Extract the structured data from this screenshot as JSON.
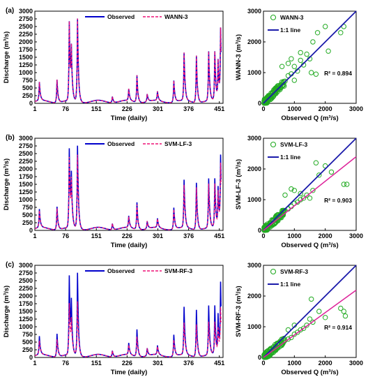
{
  "colors": {
    "observed": "#0000cc",
    "predicted": "#ee1177",
    "scatter": "#22aa22",
    "fit": "#dd2299",
    "identity": "#1a1aaa"
  },
  "chart_data": [
    {
      "type": "line",
      "panel": "(a)",
      "xlabel": "Time (daily)",
      "ylabel": "Discharge (m³/s)",
      "xlim": [
        1,
        460
      ],
      "ylim": [
        0,
        3000
      ],
      "xticks": [
        "1",
        "76",
        "151",
        "226",
        "301",
        "376",
        "451"
      ],
      "yticks": [
        "0",
        "250",
        "500",
        "750",
        "1000",
        "1250",
        "1500",
        "1750",
        "2000",
        "2250",
        "2500",
        "2750",
        "3000"
      ],
      "legend_position": "top",
      "series": [
        {
          "name": "Observed",
          "values": []
        },
        {
          "name": "WANN-3",
          "values": []
        }
      ]
    },
    {
      "type": "scatter",
      "panel": "(a)",
      "xlabel": "Observed Q (m³/s)",
      "ylabel": "WANN-3 (m³/s)",
      "xlim": [
        0,
        3000
      ],
      "ylim": [
        0,
        3000
      ],
      "ticks": [
        "0",
        "1000",
        "2000",
        "3000"
      ],
      "legend": [
        "WANN-3",
        "1:1 line"
      ],
      "legend_position": "top-left",
      "r2_text": "R² = 0.894",
      "fit_slope": 1.0,
      "has_fit_line": false,
      "points": [
        [
          400,
          420
        ],
        [
          500,
          470
        ],
        [
          600,
          640
        ],
        [
          700,
          720
        ],
        [
          800,
          900
        ],
        [
          900,
          960
        ],
        [
          1000,
          1200
        ],
        [
          1100,
          1050
        ],
        [
          1200,
          1400
        ],
        [
          1300,
          1250
        ],
        [
          1400,
          1600
        ],
        [
          1500,
          1450
        ],
        [
          1600,
          2000
        ],
        [
          1750,
          2300
        ],
        [
          2100,
          1700
        ],
        [
          2000,
          2500
        ],
        [
          2500,
          2300
        ],
        [
          2600,
          2500
        ],
        [
          1700,
          950
        ],
        [
          1550,
          1000
        ],
        [
          1000,
          750
        ],
        [
          800,
          1300
        ],
        [
          600,
          1200
        ],
        [
          1200,
          1650
        ],
        [
          900,
          1450
        ],
        [
          300,
          350
        ],
        [
          200,
          230
        ],
        [
          150,
          160
        ],
        [
          100,
          120
        ],
        [
          50,
          60
        ]
      ]
    },
    {
      "type": "line",
      "panel": "(b)",
      "xlabel": "Time (daily)",
      "ylabel": "Discharge (m³/s)",
      "xlim": [
        1,
        460
      ],
      "ylim": [
        0,
        3000
      ],
      "xticks": [
        "1",
        "76",
        "151",
        "226",
        "301",
        "376",
        "451"
      ],
      "yticks": [
        "0",
        "250",
        "500",
        "750",
        "1000",
        "1250",
        "1500",
        "1750",
        "2000",
        "2250",
        "2500",
        "2750",
        "3000"
      ],
      "legend_position": "top",
      "series": [
        {
          "name": "Observed",
          "values": []
        },
        {
          "name": "SVM-LF-3",
          "values": []
        }
      ]
    },
    {
      "type": "scatter",
      "panel": "(b)",
      "xlabel": "Observed Q (m³/s)",
      "ylabel": "SVM-LF-3 (m³/s)",
      "xlim": [
        0,
        3000
      ],
      "ylim": [
        0,
        3000
      ],
      "ticks": [
        "0",
        "1000",
        "2000",
        "3000"
      ],
      "legend": [
        "SVM-LF-3",
        "1:1 line"
      ],
      "legend_position": "top-left",
      "r2_text": "R² = 0.903",
      "fit_slope": 0.8,
      "has_fit_line": true,
      "points": [
        [
          400,
          380
        ],
        [
          500,
          420
        ],
        [
          600,
          520
        ],
        [
          700,
          650
        ],
        [
          800,
          700
        ],
        [
          900,
          780
        ],
        [
          1000,
          880
        ],
        [
          1100,
          920
        ],
        [
          1200,
          1000
        ],
        [
          1300,
          1050
        ],
        [
          1400,
          1150
        ],
        [
          1500,
          1050
        ],
        [
          1600,
          1300
        ],
        [
          1700,
          2200
        ],
        [
          1800,
          1800
        ],
        [
          2000,
          2100
        ],
        [
          2200,
          1900
        ],
        [
          2600,
          1500
        ],
        [
          2700,
          1500
        ],
        [
          1200,
          1200
        ],
        [
          900,
          1350
        ],
        [
          700,
          1150
        ],
        [
          1000,
          1300
        ],
        [
          300,
          300
        ],
        [
          200,
          210
        ],
        [
          150,
          140
        ],
        [
          100,
          100
        ],
        [
          50,
          50
        ]
      ]
    },
    {
      "type": "line",
      "panel": "(c)",
      "xlabel": "Time (daily)",
      "ylabel": "Discharge (m³/s)",
      "xlim": [
        1,
        460
      ],
      "ylim": [
        0,
        3000
      ],
      "xticks": [
        "1",
        "76",
        "151",
        "226",
        "301",
        "376",
        "451"
      ],
      "yticks": [
        "0",
        "250",
        "500",
        "750",
        "1000",
        "1250",
        "1500",
        "1750",
        "2000",
        "2250",
        "2500",
        "2750",
        "3000"
      ],
      "legend_position": "top",
      "series": [
        {
          "name": "Observed",
          "values": []
        },
        {
          "name": "SVM-RF-3",
          "values": []
        }
      ]
    },
    {
      "type": "scatter",
      "panel": "(c)",
      "xlabel": "Observed Q (m³/s)",
      "ylabel": "SVM-RF-3 (m³/s)",
      "xlim": [
        0,
        3000
      ],
      "ylim": [
        0,
        3000
      ],
      "ticks": [
        "0",
        "1000",
        "2000",
        "3000"
      ],
      "legend": [
        "SVM-RF-3",
        "1:1 line"
      ],
      "legend_position": "top-left",
      "r2_text": "R² = 0.914",
      "fit_slope": 0.73,
      "has_fit_line": true,
      "points": [
        [
          400,
          380
        ],
        [
          500,
          410
        ],
        [
          600,
          460
        ],
        [
          700,
          560
        ],
        [
          800,
          600
        ],
        [
          900,
          650
        ],
        [
          1000,
          760
        ],
        [
          1100,
          820
        ],
        [
          1200,
          900
        ],
        [
          1300,
          950
        ],
        [
          1400,
          1050
        ],
        [
          1500,
          1250
        ],
        [
          1550,
          1900
        ],
        [
          1600,
          1150
        ],
        [
          1800,
          1500
        ],
        [
          2000,
          1300
        ],
        [
          2500,
          1600
        ],
        [
          2600,
          1500
        ],
        [
          2650,
          1350
        ],
        [
          1000,
          1050
        ],
        [
          800,
          900
        ],
        [
          300,
          280
        ],
        [
          200,
          190
        ],
        [
          150,
          150
        ],
        [
          100,
          90
        ],
        [
          50,
          45
        ]
      ]
    }
  ]
}
